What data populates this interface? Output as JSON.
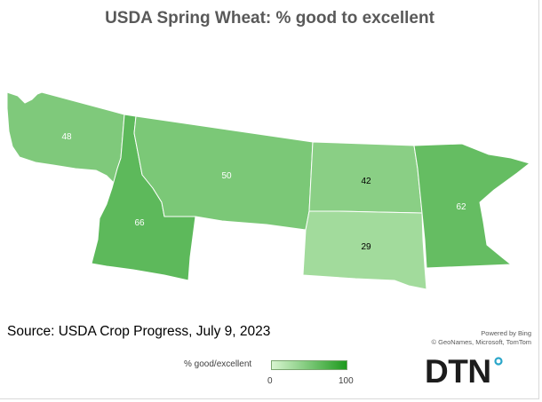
{
  "title": "USDA Spring Wheat: % good to excellent",
  "source": "Source: USDA Crop Progress, July 9, 2023",
  "attribution": {
    "line1": "Powered by Bing",
    "line2": "© GeoNames, Microsoft, TomTom"
  },
  "legend": {
    "title": "% good/excellent",
    "min": "0",
    "max": "100",
    "min_value": 0,
    "max_value": 100,
    "color_low": "#d8f5d0",
    "color_high": "#1e9a1e"
  },
  "states": [
    {
      "name": "Washington",
      "value": 48,
      "label": "48"
    },
    {
      "name": "Idaho",
      "value": 66,
      "label": "66"
    },
    {
      "name": "Montana",
      "value": 50,
      "label": "50"
    },
    {
      "name": "North Dakota",
      "value": 42,
      "label": "42"
    },
    {
      "name": "South Dakota",
      "value": 29,
      "label": "29"
    },
    {
      "name": "Minnesota",
      "value": 62,
      "label": "62"
    }
  ],
  "logo": {
    "text": "DTN",
    "dot_color": "#2aa6c9"
  }
}
